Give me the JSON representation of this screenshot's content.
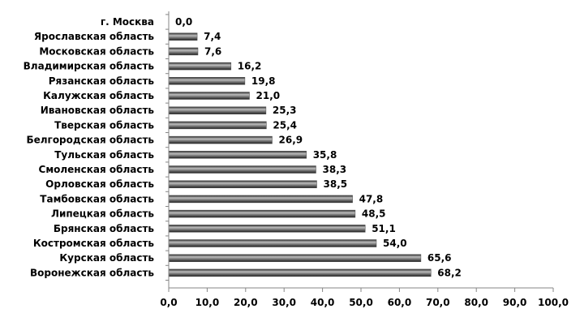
{
  "chart_data": {
    "type": "bar",
    "orientation": "horizontal",
    "title": "",
    "xlabel": "",
    "ylabel": "",
    "xlim": [
      0,
      100
    ],
    "tick_values": [
      0,
      10,
      20,
      30,
      40,
      50,
      60,
      70,
      80,
      90,
      100
    ],
    "tick_labels": [
      "0,0",
      "10,0",
      "20,0",
      "30,0",
      "40,0",
      "50,0",
      "60,0",
      "70,0",
      "80,0",
      "90,0",
      "100,0"
    ],
    "grid": false,
    "legend": "none",
    "bar_color": "#4d4d4d",
    "categories": [
      "г. Москва",
      "Ярославская  область",
      "Московская  область",
      "Владимирская  область",
      "Рязанская область",
      "Калужская область",
      "Ивановская область",
      "Тверская  область",
      "Белгородская  область",
      "Тульская  область",
      "Смоленская  область",
      "Орловская  область",
      "Тамбовская  область",
      "Липецкая  область",
      "Брянская  область",
      "Костромская  область",
      "Курская  область",
      "Воронежская  область"
    ],
    "values": [
      0.0,
      7.4,
      7.6,
      16.2,
      19.8,
      21.0,
      25.3,
      25.4,
      26.9,
      35.8,
      38.3,
      38.5,
      47.8,
      48.5,
      51.1,
      54.0,
      65.6,
      68.2
    ],
    "value_labels": [
      "0,0",
      "7,4",
      "7,6",
      "16,2",
      "19,8",
      "21,0",
      "25,3",
      "25,4",
      "26,9",
      "35,8",
      "38,3",
      "38,5",
      "47,8",
      "48,5",
      "51,1",
      "54,0",
      "65,6",
      "68,2"
    ]
  }
}
